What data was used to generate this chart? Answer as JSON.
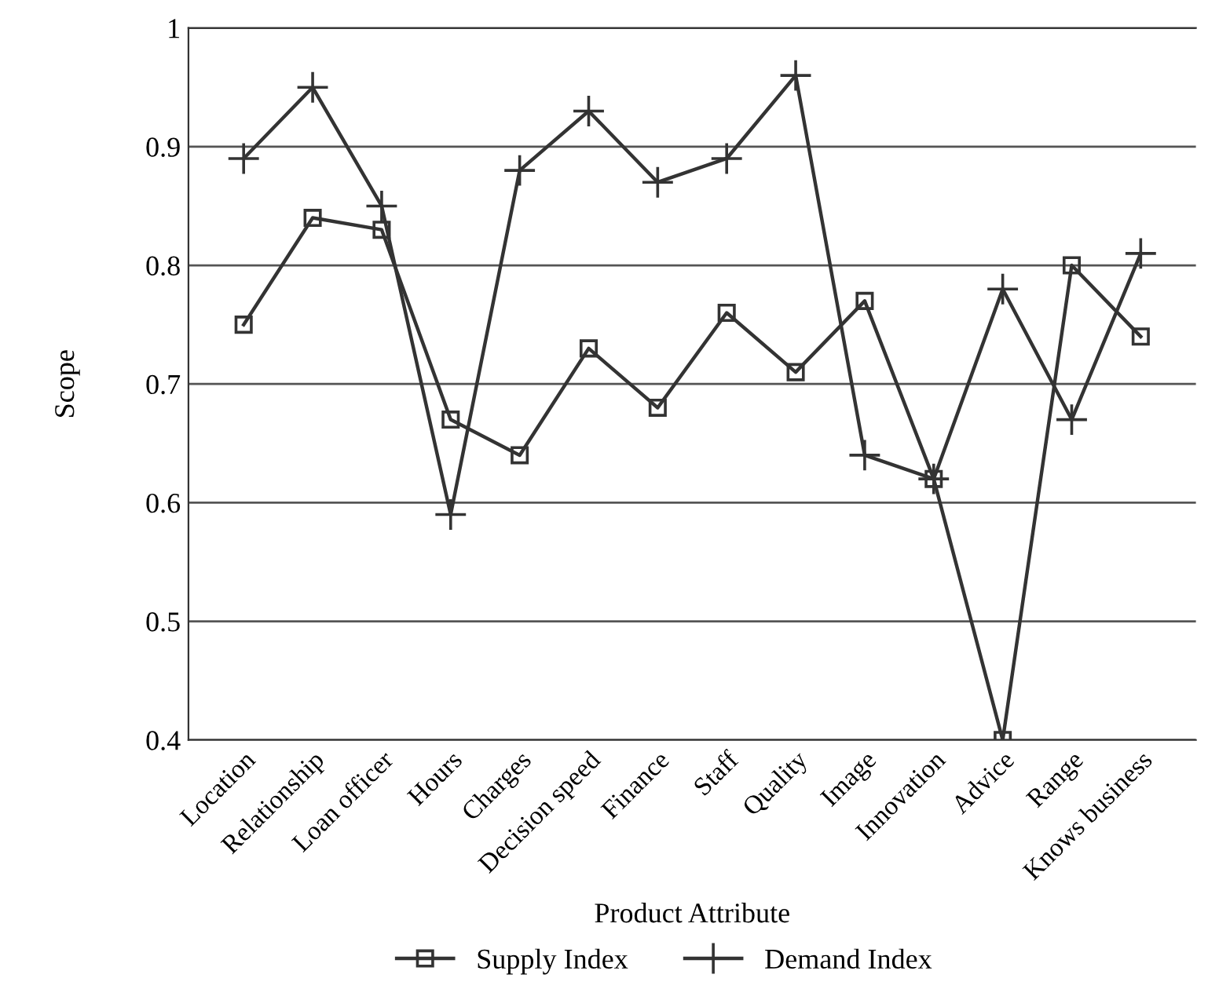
{
  "chart_data": {
    "type": "line",
    "xlabel": "Product Attribute",
    "ylabel": "Scope",
    "categories": [
      "Location",
      "Relationship",
      "Loan officer",
      "Hours",
      "Charges",
      "Decision speed",
      "Finance",
      "Staff",
      "Quality",
      "Image",
      "Innovation",
      "Advice",
      "Range",
      "Knows business"
    ],
    "series": [
      {
        "name": "Supply Index",
        "color": "#333333",
        "marker": "square",
        "values": [
          0.75,
          0.84,
          0.83,
          0.67,
          0.64,
          0.73,
          0.68,
          0.76,
          0.71,
          0.77,
          0.62,
          0.4,
          0.8,
          0.74
        ]
      },
      {
        "name": "Demand Index",
        "color": "#333333",
        "marker": "cross",
        "values": [
          0.89,
          0.95,
          0.85,
          0.59,
          0.88,
          0.93,
          0.87,
          0.89,
          0.96,
          0.64,
          0.62,
          0.78,
          0.67,
          0.81
        ]
      }
    ],
    "ylim": [
      0.4,
      1
    ],
    "yticks": [
      0.4,
      0.5,
      0.6,
      0.7,
      0.8,
      0.9,
      1
    ],
    "grid": "y",
    "legend": "bottom",
    "line_style": "solid"
  }
}
